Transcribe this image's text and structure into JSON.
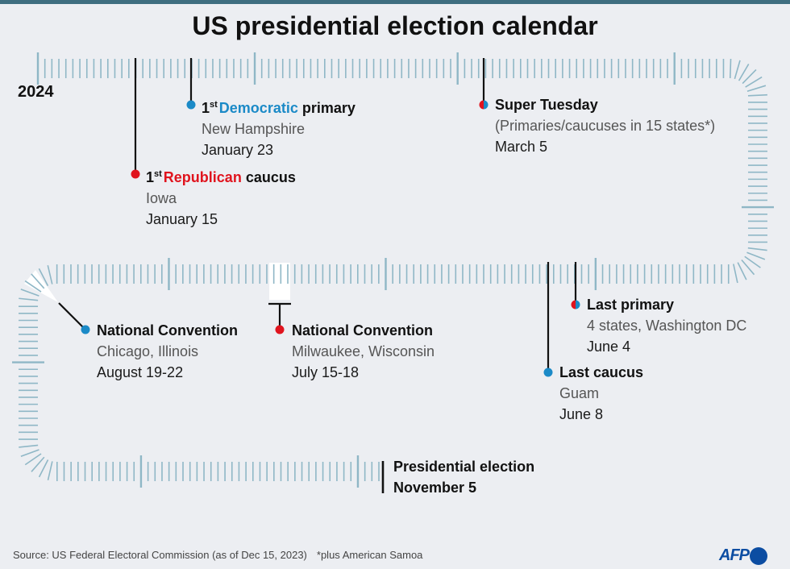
{
  "title": "US presidential election calendar",
  "year": "2024",
  "colors": {
    "democratic": "#1b8ac7",
    "republican": "#e0141e",
    "timeline_tick": "#8fb7c6",
    "background": "#eceef2"
  },
  "events": {
    "dem_primary": {
      "ordinal": "1",
      "suffix": "st",
      "party": "Democratic",
      "rest": " primary",
      "place": "New Hampshire",
      "date": "January 23"
    },
    "rep_caucus": {
      "ordinal": "1",
      "suffix": "st",
      "party": "Republican",
      "rest": " caucus",
      "place": "Iowa",
      "date": "January 15"
    },
    "super_tuesday": {
      "title": "Super Tuesday",
      "place": "(Primaries/caucuses in 15 states*)",
      "date": "March 5"
    },
    "last_primary": {
      "title": "Last primary",
      "place": "4 states, Washington DC",
      "date": "June 4"
    },
    "last_caucus": {
      "title": "Last caucus",
      "place": "Guam",
      "date": "June 8"
    },
    "rep_convention": {
      "title": "National Convention",
      "place": "Milwaukee, Wisconsin",
      "date": "July 15-18"
    },
    "dem_convention": {
      "title": "National Convention",
      "place": "Chicago, Illinois",
      "date": "August 19-22"
    },
    "election": {
      "title": "Presidential election",
      "date": "November 5"
    }
  },
  "footer": {
    "source": "Source: US Federal Electoral Commission  (as of Dec 15, 2023)",
    "note": "*plus American Samoa",
    "logo": "AFP"
  }
}
